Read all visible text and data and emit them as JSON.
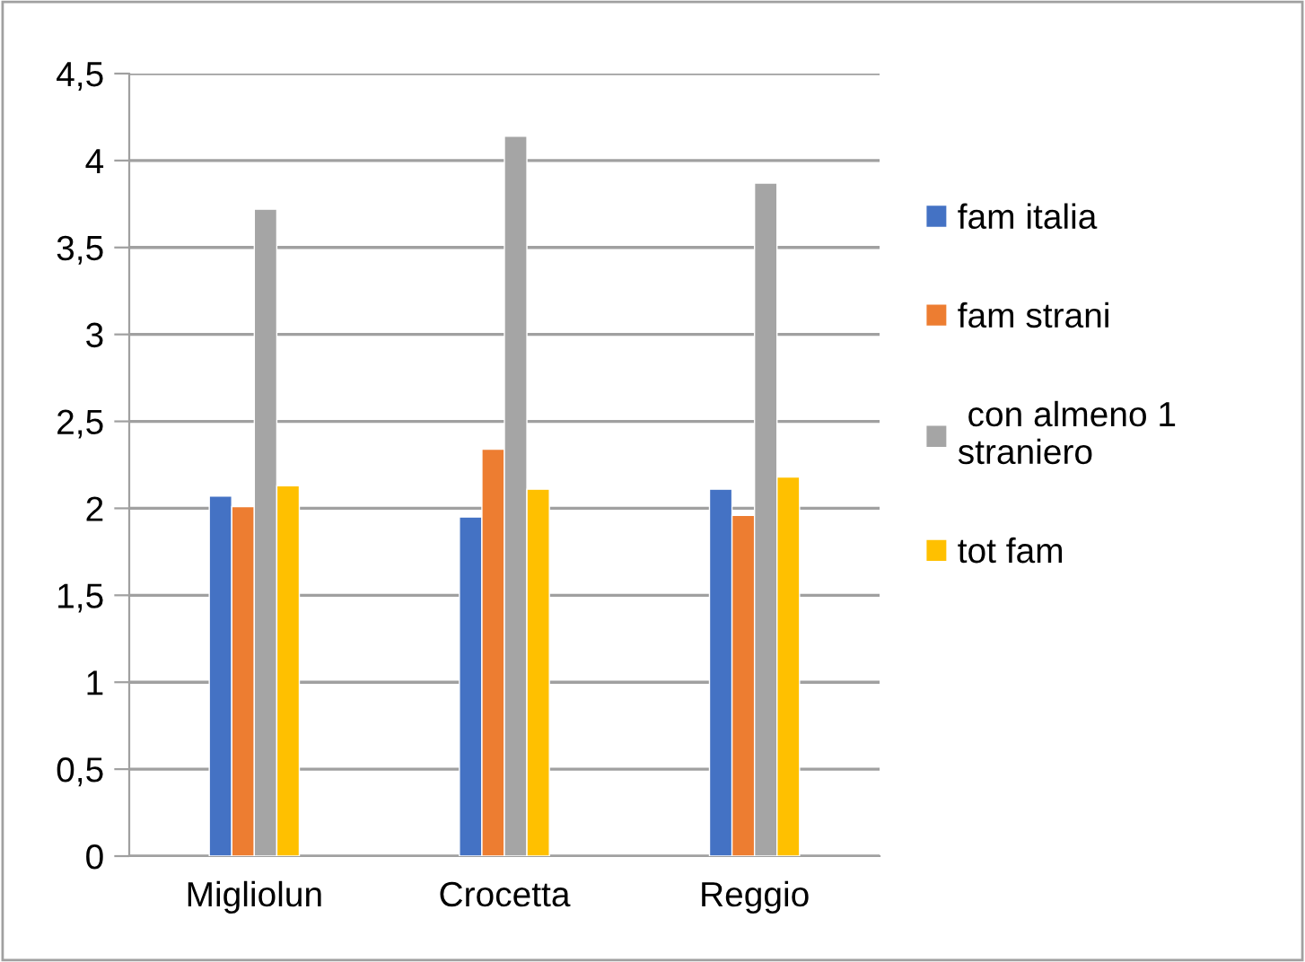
{
  "chart_data": {
    "type": "bar",
    "categories": [
      "Migliolun",
      "Crocetta",
      "Reggio"
    ],
    "series": [
      {
        "name": "fam italia",
        "color": "#4472c4",
        "values": [
          2.07,
          1.95,
          2.11
        ]
      },
      {
        "name": "fam strani",
        "color": "#ed7d31",
        "values": [
          2.01,
          2.34,
          1.96
        ]
      },
      {
        "name": " con almeno 1 straniero",
        "color": "#a5a5a5",
        "values": [
          3.72,
          4.14,
          3.87
        ]
      },
      {
        "name": "tot fam",
        "color": "#ffc000",
        "values": [
          2.13,
          2.11,
          2.18
        ]
      }
    ],
    "ylim": [
      0,
      4.5
    ],
    "yticks": [
      0,
      {
        "value": 0.5,
        "label": "0,5"
      },
      1,
      {
        "value": 1.5,
        "label": "1,5"
      },
      2,
      {
        "value": 2.5,
        "label": "2,5"
      },
      3,
      {
        "value": 3.5,
        "label": "3,5"
      },
      4,
      {
        "value": 4.5,
        "label": "4,5"
      }
    ],
    "grid": "y",
    "legend": "right"
  }
}
